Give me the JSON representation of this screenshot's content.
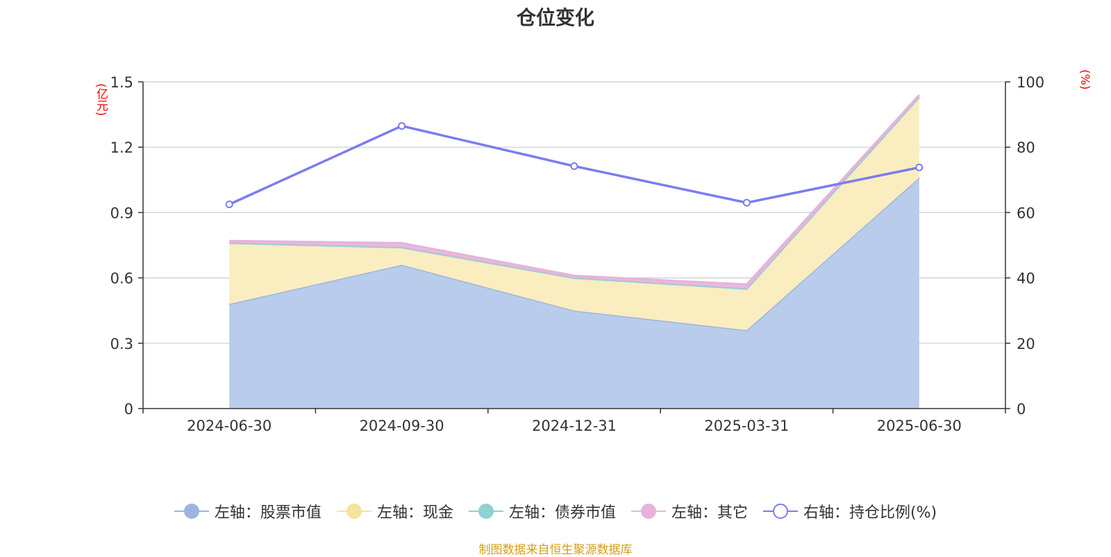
{
  "title": "仓位变化",
  "left_unit": "(亿元)",
  "right_unit": "(%)",
  "source": "制图数据来自恒生聚源数据库",
  "colors": {
    "stock": "#9ab6e0",
    "stock_fill": "#b9cceb",
    "cash": "#f7e39b",
    "cash_fill": "#faedc0",
    "bond": "#8fd1d4",
    "other": "#e7b2dc",
    "ratio": "#7b7cf0",
    "grid": "#cccccc",
    "axis": "#333333"
  },
  "legend": [
    {
      "label": "左轴：股票市值",
      "key": "stock",
      "hollow": false
    },
    {
      "label": "左轴：现金",
      "key": "cash",
      "hollow": false
    },
    {
      "label": "左轴：债券市值",
      "key": "bond",
      "hollow": false
    },
    {
      "label": "左轴：其它",
      "key": "other",
      "hollow": false
    },
    {
      "label": "右轴：持仓比例(%)",
      "key": "ratio",
      "hollow": true
    }
  ],
  "chart_data": {
    "type": "area",
    "stacked": true,
    "categories": [
      "2024-06-30",
      "2024-09-30",
      "2024-12-31",
      "2025-03-31",
      "2025-06-30"
    ],
    "series": [
      {
        "name": "左轴：股票市值",
        "axis": "left",
        "key": "stock",
        "values": [
          0.48,
          0.66,
          0.45,
          0.36,
          1.06
        ]
      },
      {
        "name": "左轴：现金",
        "axis": "left",
        "key": "cash",
        "values": [
          0.28,
          0.08,
          0.15,
          0.19,
          0.37
        ]
      },
      {
        "name": "左轴：债券市值",
        "axis": "left",
        "key": "bond",
        "values": [
          0,
          0,
          0,
          0,
          0
        ]
      },
      {
        "name": "左轴：其它",
        "axis": "left",
        "key": "other",
        "values": [
          0.01,
          0.02,
          0.01,
          0.02,
          0.01
        ]
      },
      {
        "name": "右轴：持仓比例(%)",
        "axis": "right",
        "key": "ratio",
        "type": "line",
        "values": [
          62.5,
          86.5,
          74.2,
          63.0,
          73.8
        ]
      }
    ],
    "y_left": {
      "ticks": [
        "0",
        "0.3",
        "0.6",
        "0.9",
        "1.2",
        "1.5"
      ],
      "min": 0,
      "max": 1.5
    },
    "y_right": {
      "ticks": [
        "0",
        "20",
        "40",
        "60",
        "80",
        "100"
      ],
      "min": 0,
      "max": 100
    },
    "grid": true,
    "legend_position": "bottom"
  }
}
